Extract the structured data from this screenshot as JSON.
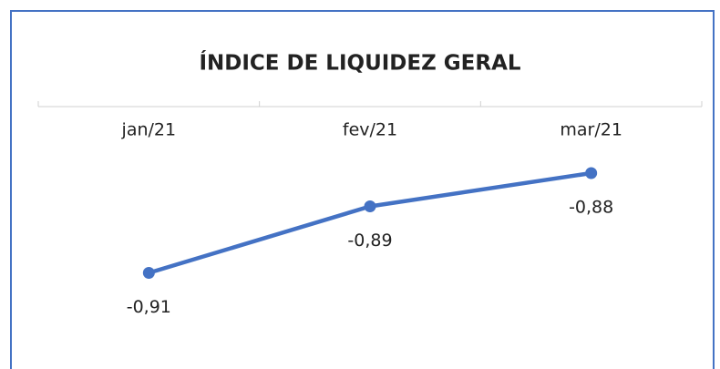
{
  "chart_data": {
    "type": "line",
    "title": "ÍNDICE DE LIQUIDEZ GERAL",
    "categories": [
      "jan/21",
      "fev/21",
      "mar/21"
    ],
    "series": [
      {
        "name": "Índice de Liquidez Geral",
        "color": "#4472c4",
        "values": [
          -0.91,
          -0.89,
          -0.88
        ],
        "value_labels": [
          "-0,91",
          "-0,89",
          "-0,88"
        ]
      }
    ],
    "ylim": [
      -0.92,
      -0.86
    ]
  }
}
